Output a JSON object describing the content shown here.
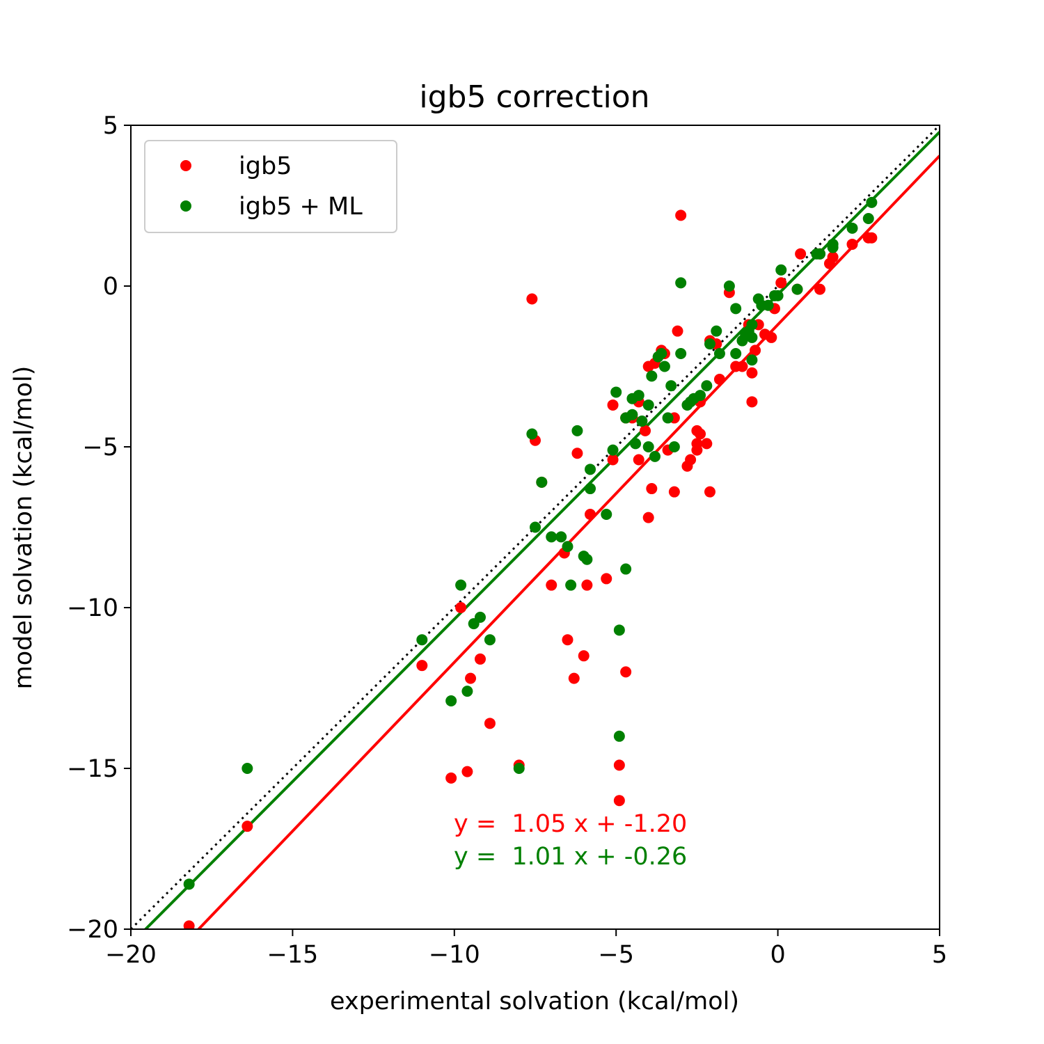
{
  "chart_data": {
    "type": "scatter",
    "title": "igb5 correction",
    "xlabel": "experimental solvation (kcal/mol)",
    "ylabel": "model solvation (kcal/mol)",
    "xlim": [
      -20,
      5
    ],
    "ylim": [
      -20,
      5
    ],
    "xticks": [
      {
        "value": -20,
        "label": "−20"
      },
      {
        "value": -15,
        "label": "−15"
      },
      {
        "value": -10,
        "label": "−10"
      },
      {
        "value": -5,
        "label": "−5"
      },
      {
        "value": 0,
        "label": "0"
      },
      {
        "value": 5,
        "label": "5"
      }
    ],
    "yticks": [
      {
        "value": -20,
        "label": "−20"
      },
      {
        "value": -15,
        "label": "−15"
      },
      {
        "value": -10,
        "label": "−10"
      },
      {
        "value": -5,
        "label": "−5"
      },
      {
        "value": 0,
        "label": "0"
      },
      {
        "value": 5,
        "label": "5"
      }
    ],
    "grid": false,
    "legend_position": "top-left",
    "identity_line": {
      "color": "#000000",
      "style": "dotted"
    },
    "series": [
      {
        "name": "igb5",
        "color": "#ff0000",
        "fit": {
          "slope": 1.05,
          "intercept": -1.2
        },
        "annotation": "y =  1.05 x + -1.20",
        "points": [
          [
            -18.2,
            -19.9
          ],
          [
            -16.4,
            -16.8
          ],
          [
            -11.0,
            -11.8
          ],
          [
            -10.1,
            -15.3
          ],
          [
            -9.8,
            -10.0
          ],
          [
            -9.6,
            -15.1
          ],
          [
            -9.5,
            -12.2
          ],
          [
            -9.2,
            -11.6
          ],
          [
            -8.9,
            -13.6
          ],
          [
            -8.0,
            -14.9
          ],
          [
            -7.6,
            -0.4
          ],
          [
            -7.5,
            -4.8
          ],
          [
            -7.3,
            -6.1
          ],
          [
            -7.0,
            -9.3
          ],
          [
            -6.6,
            -8.3
          ],
          [
            -6.5,
            -11.0
          ],
          [
            -6.3,
            -12.2
          ],
          [
            -6.2,
            -5.2
          ],
          [
            -6.0,
            -11.5
          ],
          [
            -5.9,
            -9.3
          ],
          [
            -5.8,
            -7.1
          ],
          [
            -5.3,
            -9.1
          ],
          [
            -5.1,
            -5.4
          ],
          [
            -5.1,
            -3.7
          ],
          [
            -4.9,
            -14.9
          ],
          [
            -4.9,
            -16.0
          ],
          [
            -4.7,
            -12.0
          ],
          [
            -4.7,
            -4.1
          ],
          [
            -4.5,
            -4.1
          ],
          [
            -4.3,
            -5.4
          ],
          [
            -4.3,
            -3.6
          ],
          [
            -4.1,
            -4.5
          ],
          [
            -4.0,
            -7.2
          ],
          [
            -4.0,
            -2.5
          ],
          [
            -3.9,
            -6.3
          ],
          [
            -3.8,
            -2.4
          ],
          [
            -3.6,
            -2.0
          ],
          [
            -3.5,
            -2.1
          ],
          [
            -3.4,
            -5.1
          ],
          [
            -3.2,
            -6.4
          ],
          [
            -3.2,
            -4.1
          ],
          [
            -3.1,
            -1.4
          ],
          [
            -3.0,
            2.2
          ],
          [
            -2.8,
            -5.6
          ],
          [
            -2.7,
            -5.4
          ],
          [
            -2.5,
            -4.5
          ],
          [
            -2.5,
            -4.9
          ],
          [
            -2.5,
            -5.1
          ],
          [
            -2.4,
            -3.6
          ],
          [
            -2.4,
            -4.6
          ],
          [
            -2.2,
            -4.9
          ],
          [
            -2.1,
            -6.4
          ],
          [
            -2.1,
            -1.7
          ],
          [
            -1.9,
            -1.8
          ],
          [
            -1.8,
            -2.9
          ],
          [
            -1.5,
            -0.2
          ],
          [
            -1.3,
            -2.5
          ],
          [
            -1.1,
            -2.5
          ],
          [
            -0.9,
            -1.2
          ],
          [
            -0.8,
            -2.7
          ],
          [
            -0.8,
            -3.6
          ],
          [
            -0.7,
            -2.0
          ],
          [
            -0.6,
            -1.2
          ],
          [
            -0.4,
            -1.5
          ],
          [
            -0.2,
            -1.6
          ],
          [
            -0.1,
            -0.7
          ],
          [
            0.1,
            0.1
          ],
          [
            0.6,
            -0.1
          ],
          [
            0.7,
            1.0
          ],
          [
            1.3,
            -0.1
          ],
          [
            1.3,
            1.0
          ],
          [
            1.6,
            0.7
          ],
          [
            1.7,
            0.9
          ],
          [
            2.3,
            1.3
          ],
          [
            2.8,
            1.5
          ],
          [
            2.9,
            1.5
          ]
        ]
      },
      {
        "name": "igb5 + ML",
        "color": "#008000",
        "fit": {
          "slope": 1.01,
          "intercept": -0.26
        },
        "annotation": "y =  1.01 x + -0.26",
        "points": [
          [
            -18.2,
            -18.6
          ],
          [
            -16.4,
            -15.0
          ],
          [
            -11.0,
            -11.0
          ],
          [
            -10.1,
            -12.9
          ],
          [
            -9.8,
            -9.3
          ],
          [
            -9.6,
            -12.6
          ],
          [
            -9.4,
            -10.5
          ],
          [
            -9.2,
            -10.3
          ],
          [
            -8.9,
            -11.0
          ],
          [
            -8.0,
            -15.0
          ],
          [
            -7.6,
            -4.6
          ],
          [
            -7.5,
            -7.5
          ],
          [
            -7.3,
            -6.1
          ],
          [
            -7.0,
            -7.8
          ],
          [
            -6.7,
            -7.8
          ],
          [
            -6.5,
            -8.1
          ],
          [
            -6.4,
            -9.3
          ],
          [
            -6.2,
            -4.5
          ],
          [
            -6.0,
            -8.4
          ],
          [
            -5.9,
            -8.5
          ],
          [
            -5.8,
            -6.3
          ],
          [
            -5.8,
            -5.7
          ],
          [
            -5.3,
            -7.1
          ],
          [
            -5.1,
            -5.1
          ],
          [
            -5.0,
            -3.3
          ],
          [
            -4.9,
            -10.7
          ],
          [
            -4.9,
            -14.0
          ],
          [
            -4.7,
            -8.8
          ],
          [
            -4.7,
            -4.1
          ],
          [
            -4.5,
            -4.0
          ],
          [
            -4.5,
            -3.5
          ],
          [
            -4.4,
            -4.9
          ],
          [
            -4.3,
            -3.4
          ],
          [
            -4.2,
            -4.2
          ],
          [
            -4.0,
            -3.7
          ],
          [
            -4.0,
            -5.0
          ],
          [
            -3.9,
            -2.8
          ],
          [
            -3.8,
            -5.3
          ],
          [
            -3.7,
            -2.2
          ],
          [
            -3.6,
            -2.1
          ],
          [
            -3.5,
            -2.5
          ],
          [
            -3.4,
            -4.1
          ],
          [
            -3.3,
            -3.1
          ],
          [
            -3.2,
            -5.0
          ],
          [
            -3.0,
            -2.1
          ],
          [
            -3.0,
            0.1
          ],
          [
            -2.8,
            -3.7
          ],
          [
            -2.7,
            -3.6
          ],
          [
            -2.6,
            -3.5
          ],
          [
            -2.4,
            -3.4
          ],
          [
            -2.2,
            -3.1
          ],
          [
            -2.1,
            -1.8
          ],
          [
            -1.9,
            -1.4
          ],
          [
            -1.8,
            -2.1
          ],
          [
            -1.5,
            0.0
          ],
          [
            -1.3,
            -0.7
          ],
          [
            -1.3,
            -2.1
          ],
          [
            -1.1,
            -1.7
          ],
          [
            -1.0,
            -1.5
          ],
          [
            -0.9,
            -1.4
          ],
          [
            -0.8,
            -1.2
          ],
          [
            -0.8,
            -2.3
          ],
          [
            -0.8,
            -1.6
          ],
          [
            -0.6,
            -0.4
          ],
          [
            -0.5,
            -0.6
          ],
          [
            -0.3,
            -0.6
          ],
          [
            -0.1,
            -0.3
          ],
          [
            0.0,
            -0.3
          ],
          [
            0.1,
            0.5
          ],
          [
            0.6,
            -0.1
          ],
          [
            1.2,
            1.0
          ],
          [
            1.3,
            1.0
          ],
          [
            1.7,
            1.2
          ],
          [
            1.7,
            1.3
          ],
          [
            2.3,
            1.8
          ],
          [
            2.8,
            2.1
          ],
          [
            2.9,
            2.6
          ]
        ]
      }
    ]
  }
}
